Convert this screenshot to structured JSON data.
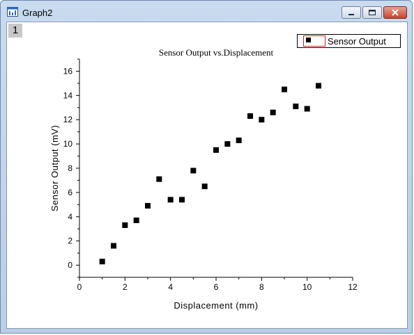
{
  "window": {
    "title": "Graph2",
    "layer_tab": "1",
    "controls": [
      "minimize",
      "maximize",
      "close"
    ]
  },
  "icons": {
    "app": "graph-window-icon",
    "minimize": "minimize-icon",
    "maximize": "maximize-icon",
    "close": "close-icon"
  },
  "colors": {
    "marker": "#000000",
    "legend_swatch_border": "#cc2222"
  },
  "chart_data": {
    "type": "scatter",
    "title": "Sensor Output vs.Displacement",
    "xlabel": "Displacement (mm)",
    "ylabel": "Sensor Output (mV)",
    "xlim": [
      0,
      12
    ],
    "ylim": [
      -1,
      17
    ],
    "xticks": [
      0,
      2,
      4,
      6,
      8,
      10,
      12
    ],
    "yticks": [
      0,
      2,
      4,
      6,
      8,
      10,
      12,
      14,
      16
    ],
    "grid": false,
    "legend_position": "top-right",
    "series": [
      {
        "name": "Sensor Output",
        "marker": "square",
        "x": [
          1.0,
          1.5,
          2.0,
          2.5,
          3.0,
          3.5,
          4.0,
          4.5,
          5.0,
          5.5,
          6.0,
          6.5,
          7.0,
          7.5,
          8.0,
          8.5,
          9.0,
          9.5,
          10.0,
          10.5
        ],
        "y": [
          0.3,
          1.6,
          3.3,
          3.7,
          4.9,
          7.1,
          5.4,
          5.4,
          7.8,
          6.5,
          9.5,
          10.0,
          10.3,
          12.3,
          12.0,
          12.6,
          14.5,
          13.1,
          12.9,
          14.8
        ]
      }
    ]
  }
}
